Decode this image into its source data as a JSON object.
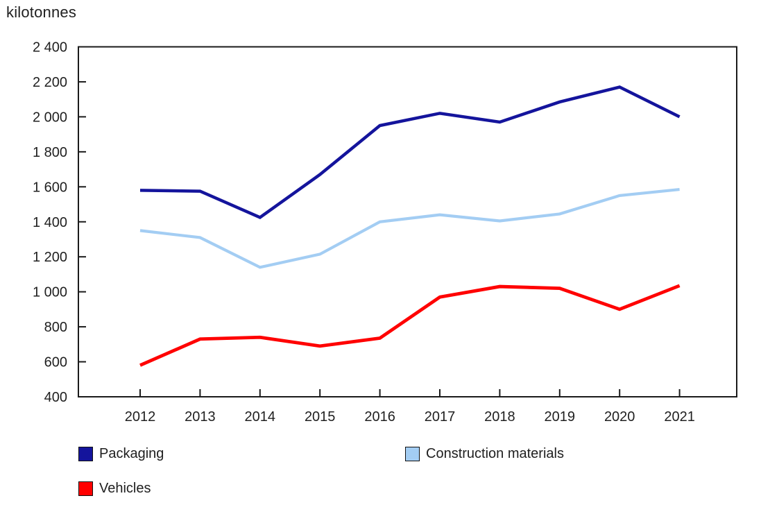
{
  "title": "kilotonnes",
  "chart_data": {
    "type": "line",
    "title": "",
    "ylabel": "kilotonnes",
    "xlabel": "",
    "x": [
      2012,
      2013,
      2014,
      2015,
      2016,
      2017,
      2018,
      2019,
      2020,
      2021
    ],
    "x_tick_labels": [
      "2012",
      "2013",
      "2014",
      "2015",
      "2016",
      "2017",
      "2018",
      "2019",
      "2020",
      "2021"
    ],
    "ylim": [
      400,
      2400
    ],
    "y_tick_step": 200,
    "y_tick_labels": [
      "400",
      "600",
      "800",
      "1 000",
      "1 200",
      "1 400",
      "1 600",
      "1 800",
      "2 000",
      "2 200",
      "2 400"
    ],
    "grid": false,
    "legend_position": "bottom",
    "series": [
      {
        "name": "Packaging",
        "color": "#14149C",
        "values": [
          1580,
          1575,
          1425,
          1670,
          1950,
          2020,
          1970,
          2085,
          2170,
          2000
        ]
      },
      {
        "name": "Construction materials",
        "color": "#A3CDF3",
        "values": [
          1350,
          1310,
          1140,
          1215,
          1400,
          1440,
          1405,
          1445,
          1550,
          1585
        ]
      },
      {
        "name": "Vehicles",
        "color": "#FF0000",
        "values": [
          580,
          730,
          740,
          690,
          735,
          970,
          1030,
          1020,
          900,
          1035
        ]
      }
    ],
    "axis_color": "#1A1A1A"
  }
}
